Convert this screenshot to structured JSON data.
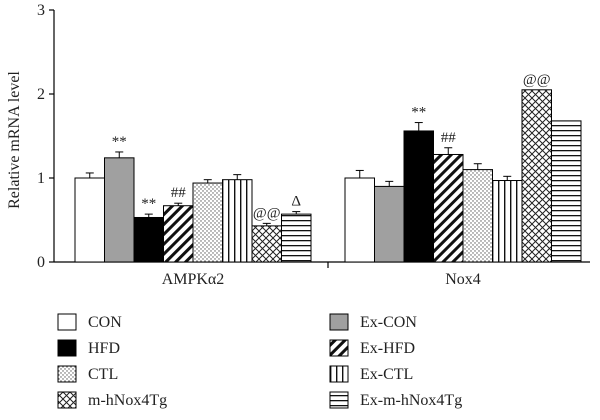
{
  "chart_data": {
    "type": "bar",
    "ylabel": "Relative mRNA level",
    "ylim": [
      0,
      3
    ],
    "yticks": [
      "0",
      "1",
      "2",
      "3"
    ],
    "grid": false,
    "legend_placement": "bottom",
    "categories": [
      "AMPKα2",
      "Nox4"
    ],
    "series": [
      {
        "name": "CON",
        "pattern": "white",
        "values": [
          1.0,
          1.0
        ],
        "errors": [
          0.06,
          0.09
        ],
        "annotations": [
          "",
          ""
        ]
      },
      {
        "name": "Ex-CON",
        "pattern": "gray",
        "values": [
          1.24,
          0.9
        ],
        "errors": [
          0.07,
          0.06
        ],
        "annotations": [
          "**",
          ""
        ]
      },
      {
        "name": "HFD",
        "pattern": "black",
        "values": [
          0.53,
          1.56
        ],
        "errors": [
          0.04,
          0.1
        ],
        "annotations": [
          "**",
          "**"
        ]
      },
      {
        "name": "Ex-HFD",
        "pattern": "diagonal",
        "values": [
          0.67,
          1.28
        ],
        "errors": [
          0.03,
          0.08
        ],
        "annotations": [
          "##",
          "##"
        ]
      },
      {
        "name": "CTL",
        "pattern": "dots",
        "values": [
          0.94,
          1.1
        ],
        "errors": [
          0.04,
          0.07
        ],
        "annotations": [
          "",
          ""
        ]
      },
      {
        "name": "Ex-CTL",
        "pattern": "vertical",
        "values": [
          0.98,
          0.97
        ],
        "errors": [
          0.06,
          0.05
        ],
        "annotations": [
          "",
          ""
        ]
      },
      {
        "name": "m-hNox4Tg",
        "pattern": "crosshatch",
        "values": [
          0.43,
          2.05
        ],
        "errors": [
          0.03,
          0.0
        ],
        "annotations": [
          "@@",
          "@@"
        ]
      },
      {
        "name": "Ex-m-hNox4Tg",
        "pattern": "horizontal",
        "values": [
          0.57,
          1.68
        ],
        "errors": [
          0.03,
          0.0
        ],
        "annotations": [
          "Δ",
          ""
        ]
      }
    ]
  }
}
